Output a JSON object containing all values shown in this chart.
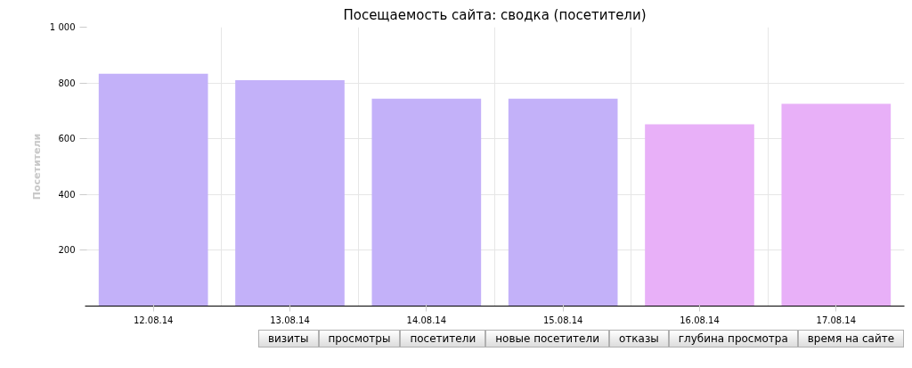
{
  "chart_data": {
    "type": "bar",
    "title": "Посещаемость сайта: сводка (посетители)",
    "ylabel": "Посетители",
    "categories": [
      "12.08.14",
      "13.08.14",
      "14.08.14",
      "15.08.14",
      "16.08.14",
      "17.08.14"
    ],
    "values": [
      833,
      810,
      744,
      744,
      652,
      725
    ],
    "colors": [
      "#c3b1f9",
      "#c3b1f9",
      "#c3b1f9",
      "#c3b1f9",
      "#e8b0f8",
      "#e8b0f8"
    ],
    "ylim": [
      0,
      1000
    ],
    "yticks": [
      200,
      400,
      600,
      800,
      {
        "value": 1000,
        "label": "1 000"
      }
    ],
    "grid": true,
    "annotations": [
      "визиты",
      "просмотры",
      "посетители",
      "новые посетители",
      "отказы",
      "глубина просмотра",
      "время на сайте"
    ]
  }
}
